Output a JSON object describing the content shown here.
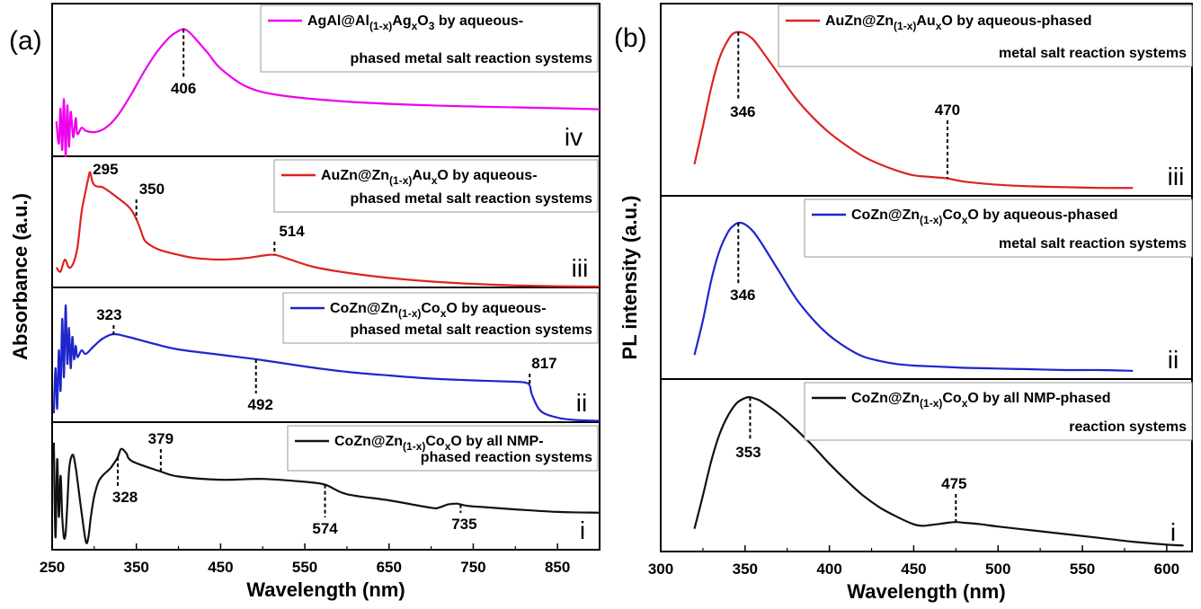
{
  "panels": {
    "a_label": "(a)",
    "b_label": "(b)"
  },
  "chart_data": [
    {
      "type": "line",
      "panel": "a",
      "xlabel": "Wavelength (nm)",
      "ylabel": "Absorbance (a.u.)",
      "xlim": [
        250,
        900
      ],
      "xticks": [
        250,
        350,
        450,
        550,
        650,
        750,
        850
      ],
      "series": [
        {
          "roman": "iv",
          "color": "#ee00ee",
          "legend": {
            "pre": "AgAl@Al",
            "sub1": "(1-x)",
            "mid": "Ag",
            "sub2": "x",
            "post": "O",
            "sub3": "3",
            "tail": " by aqueous-",
            "line2": "phased metal salt reaction systems"
          },
          "x": [
            255,
            258,
            260,
            262,
            264,
            266,
            268,
            270,
            272,
            275,
            278,
            280,
            285,
            290,
            300,
            310,
            320,
            330,
            345,
            360,
            375,
            390,
            400,
            406,
            412,
            420,
            435,
            450,
            480,
            520,
            600,
            700,
            800,
            900
          ],
          "y": [
            0.55,
            0.2,
            0.75,
            0.1,
            0.9,
            0.0,
            0.8,
            0.15,
            0.7,
            0.3,
            0.6,
            0.35,
            0.45,
            0.4,
            0.38,
            0.42,
            0.52,
            0.68,
            1.0,
            1.35,
            1.65,
            1.88,
            1.97,
            2.0,
            1.96,
            1.85,
            1.62,
            1.38,
            1.1,
            0.96,
            0.86,
            0.8,
            0.77,
            0.74
          ],
          "ylim": [
            0,
            2.4
          ],
          "peaks": [
            {
              "x": 406,
              "label": "406"
            }
          ]
        },
        {
          "roman": "iii",
          "color": "#dd2222",
          "legend": {
            "pre": "AuZn@Zn",
            "sub1": "(1-x)",
            "mid": "Au",
            "sub2": "x",
            "post": "O",
            "sub3": "",
            "tail": " by aqueous-",
            "line2": "phased metal salt reaction systems"
          },
          "x": [
            255,
            260,
            265,
            270,
            275,
            280,
            285,
            290,
            293,
            295,
            298,
            302,
            310,
            320,
            330,
            340,
            345,
            350,
            355,
            360,
            370,
            380,
            400,
            420,
            450,
            480,
            500,
            514,
            530,
            560,
            600,
            650,
            700,
            750,
            800,
            850,
            900
          ],
          "y": [
            0.5,
            0.4,
            0.7,
            0.5,
            0.6,
            1.0,
            1.9,
            2.45,
            2.75,
            2.9,
            2.65,
            2.55,
            2.52,
            2.38,
            2.22,
            2.05,
            1.92,
            1.72,
            1.45,
            1.18,
            1.02,
            0.93,
            0.82,
            0.74,
            0.7,
            0.74,
            0.8,
            0.82,
            0.72,
            0.52,
            0.37,
            0.24,
            0.15,
            0.09,
            0.05,
            0.03,
            0.02
          ],
          "ylim": [
            0,
            3.3
          ],
          "peaks": [
            {
              "x": 295,
              "label": "295"
            },
            {
              "x": 350,
              "label": "350"
            },
            {
              "x": 514,
              "label": "514"
            }
          ]
        },
        {
          "roman": "ii",
          "color": "#1f25cc",
          "legend": {
            "pre": "CoZn@Zn",
            "sub1": "(1-x)",
            "mid": "Co",
            "sub2": "x",
            "post": "O",
            "sub3": "",
            "tail": " by aqueous-",
            "line2": "phased metal salt reaction systems"
          },
          "x": [
            252,
            254,
            256,
            258,
            260,
            262,
            264,
            266,
            268,
            270,
            272,
            274,
            276,
            278,
            280,
            285,
            290,
            300,
            310,
            323,
            340,
            370,
            400,
            450,
            500,
            550,
            600,
            650,
            700,
            750,
            800,
            812,
            817,
            820,
            830,
            850,
            870,
            900
          ],
          "y": [
            0.2,
            1.2,
            0.3,
            1.6,
            0.7,
            2.3,
            1.0,
            2.6,
            1.3,
            2.1,
            1.2,
            1.9,
            1.4,
            1.7,
            1.45,
            1.6,
            1.52,
            1.7,
            1.86,
            1.96,
            1.9,
            1.75,
            1.62,
            1.5,
            1.38,
            1.24,
            1.12,
            1.04,
            0.97,
            0.93,
            0.9,
            0.88,
            0.82,
            0.6,
            0.25,
            0.1,
            0.05,
            0.03
          ],
          "ylim": [
            0,
            3.0
          ],
          "peaks": [
            {
              "x": 323,
              "label": "323"
            },
            {
              "x": 492,
              "label": "492"
            },
            {
              "x": 817,
              "label": "817"
            }
          ]
        },
        {
          "roman": "i",
          "color": "#111111",
          "legend": {
            "pre": "CoZn@Zn",
            "sub1": "(1-x)",
            "mid": "Co",
            "sub2": "x",
            "post": "O",
            "sub3": "",
            "tail": " by all NMP-",
            "line2": "phased reaction systems"
          },
          "x": [
            252,
            254,
            256,
            258,
            260,
            262,
            264,
            266,
            268,
            270,
            272,
            275,
            278,
            280,
            285,
            290,
            293,
            296,
            300,
            305,
            310,
            315,
            320,
            325,
            328,
            332,
            338,
            345,
            379,
            400,
            450,
            500,
            550,
            574,
            600,
            650,
            700,
            710,
            720,
            730,
            735,
            745,
            760,
            800,
            850,
            900
          ],
          "y": [
            2.6,
            0.3,
            2.2,
            0.8,
            1.8,
            0.8,
            0.3,
            0.4,
            1.1,
            1.9,
            2.2,
            2.3,
            2.0,
            1.7,
            0.9,
            0.2,
            0.3,
            0.8,
            1.3,
            1.65,
            1.8,
            1.9,
            2.0,
            2.15,
            2.25,
            2.45,
            2.35,
            2.15,
            1.9,
            1.78,
            1.7,
            1.72,
            1.65,
            1.58,
            1.35,
            1.2,
            1.02,
            1.03,
            1.1,
            1.12,
            1.1,
            1.06,
            1.04,
            0.98,
            0.92,
            0.9
          ],
          "ylim": [
            0,
            3.1
          ],
          "peaks": [
            {
              "x": 328,
              "label": "328"
            },
            {
              "x": 379,
              "label": "379"
            },
            {
              "x": 574,
              "label": "574"
            },
            {
              "x": 735,
              "label": "735"
            }
          ]
        }
      ]
    },
    {
      "type": "line",
      "panel": "b",
      "xlabel": "Wavelength (nm)",
      "ylabel": "PL intensity (a.u.)",
      "xlim": [
        300,
        615
      ],
      "xticks": [
        300,
        350,
        400,
        450,
        500,
        550,
        600
      ],
      "series": [
        {
          "roman": "iii",
          "color": "#dd2222",
          "legend": {
            "pre": "AuZn@Zn",
            "sub1": "(1-x)",
            "mid": "Au",
            "sub2": "x",
            "post": "O",
            "sub3": "",
            "tail": " by aqueous-phased",
            "line2": "metal salt reaction systems"
          },
          "x": [
            320,
            325,
            330,
            335,
            340,
            343,
            346,
            350,
            355,
            360,
            370,
            380,
            390,
            400,
            410,
            420,
            430,
            440,
            450,
            460,
            470,
            480,
            500,
            520,
            540,
            560,
            580
          ],
          "y": [
            0.16,
            0.4,
            0.65,
            0.84,
            0.95,
            0.99,
            1.0,
            0.99,
            0.95,
            0.88,
            0.73,
            0.58,
            0.46,
            0.36,
            0.28,
            0.21,
            0.16,
            0.12,
            0.09,
            0.08,
            0.07,
            0.05,
            0.03,
            0.02,
            0.015,
            0.01,
            0.01
          ],
          "ylim": [
            -0.04,
            1.18
          ],
          "peaks": [
            {
              "x": 346,
              "label": "346"
            },
            {
              "x": 470,
              "label": "470"
            }
          ]
        },
        {
          "roman": "ii",
          "color": "#1f25cc",
          "legend": {
            "pre": "CoZn@Zn",
            "sub1": "(1-x)",
            "mid": "Co",
            "sub2": "x",
            "post": "O",
            "sub3": "",
            "tail": " by aqueous-phased",
            "line2": "metal salt reaction systems"
          },
          "x": [
            320,
            325,
            330,
            335,
            340,
            343,
            346,
            350,
            355,
            360,
            370,
            380,
            390,
            400,
            410,
            420,
            430,
            440,
            450,
            460,
            470,
            480,
            500,
            520,
            540,
            560,
            580
          ],
          "y": [
            0.12,
            0.35,
            0.62,
            0.82,
            0.94,
            0.98,
            1.0,
            0.99,
            0.94,
            0.86,
            0.68,
            0.5,
            0.36,
            0.25,
            0.17,
            0.11,
            0.08,
            0.06,
            0.05,
            0.045,
            0.04,
            0.035,
            0.03,
            0.025,
            0.02,
            0.02,
            0.015
          ],
          "ylim": [
            -0.04,
            1.18
          ],
          "peaks": [
            {
              "x": 346,
              "label": "346"
            }
          ]
        },
        {
          "roman": "i",
          "color": "#111111",
          "legend": {
            "pre": "CoZn@Zn",
            "sub1": "(1-x)",
            "mid": "Co",
            "sub2": "x",
            "post": "O",
            "sub3": "",
            "tail": " by all NMP-phased",
            "line2": "reaction systems"
          },
          "x": [
            320,
            325,
            330,
            335,
            340,
            345,
            350,
            353,
            356,
            360,
            370,
            380,
            390,
            400,
            410,
            420,
            430,
            440,
            450,
            455,
            460,
            470,
            475,
            480,
            490,
            500,
            520,
            540,
            560,
            580,
            600,
            610
          ],
          "y": [
            0.13,
            0.35,
            0.58,
            0.76,
            0.88,
            0.96,
            0.995,
            1.0,
            0.99,
            0.97,
            0.89,
            0.79,
            0.68,
            0.56,
            0.45,
            0.35,
            0.27,
            0.21,
            0.16,
            0.15,
            0.155,
            0.17,
            0.175,
            0.17,
            0.16,
            0.145,
            0.12,
            0.095,
            0.07,
            0.045,
            0.025,
            0.02
          ],
          "ylim": [
            -0.02,
            1.12
          ],
          "peaks": [
            {
              "x": 353,
              "label": "353"
            },
            {
              "x": 475,
              "label": "475"
            }
          ]
        }
      ]
    }
  ]
}
